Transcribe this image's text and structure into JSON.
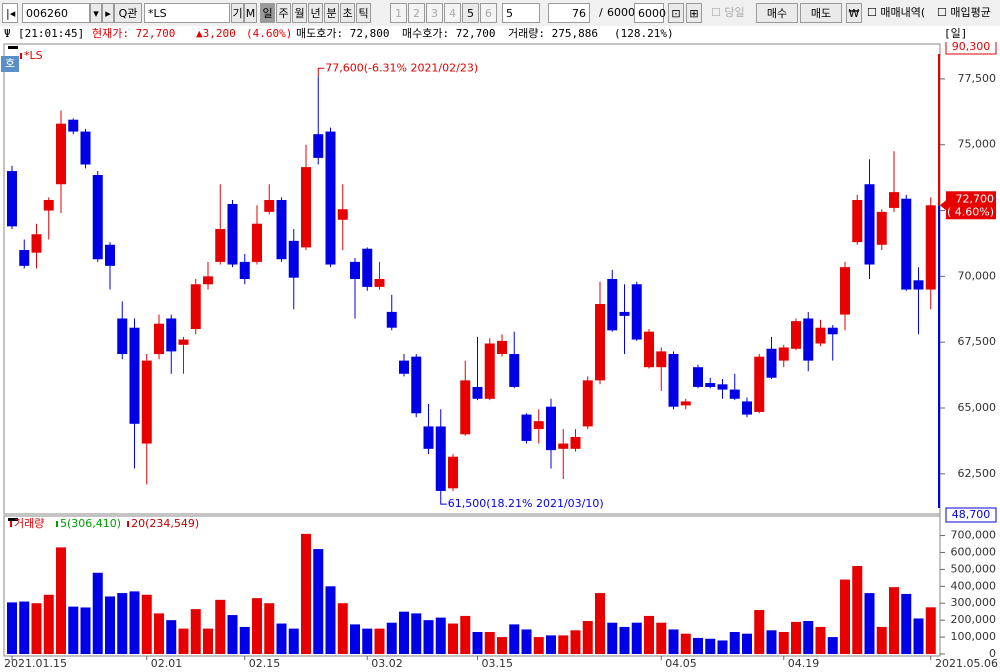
{
  "toolbar": {
    "code": "006260",
    "search": "관",
    "name": "*LS",
    "buttons": [
      "기",
      "M"
    ],
    "periods": [
      "일",
      "주",
      "월",
      "년",
      "분",
      "초",
      "틱"
    ],
    "presets": [
      "1",
      "2",
      "3",
      "4",
      "5",
      "6"
    ],
    "preset_select": "5",
    "count": "76",
    "separator": "/",
    "max_count": "6000",
    "max_count2": "6000",
    "today": "당일",
    "buy": "매수",
    "sell": "매도",
    "currency": "₩",
    "trade_history": "매매내역(",
    "avg_price": "매입평균"
  },
  "info_bar": {
    "time": "[21:01:45]",
    "price": "현재가: 72,700",
    "change": "▲3,200",
    "change_pct": "(4.60%)",
    "ask": "매도호가: 72,800",
    "bid": "매수호가: 72,700",
    "volume": "거래량: 275,886",
    "volume_pct": "(128.21%)",
    "period": "[일]"
  },
  "chart_data": [
    {
      "type": "candlestick",
      "badge": "호",
      "up_color": "#e60000",
      "down_color": "#0000e6",
      "series": [
        {
          "name": "*LS",
          "open": [
            74000,
            71000,
            70900,
            72500,
            73500,
            75950,
            75500,
            73850,
            71200,
            68400,
            68050,
            63650,
            67050,
            68400,
            67400,
            68000,
            69700,
            70550,
            72750,
            70550,
            70550,
            72450,
            72900,
            71350,
            71100,
            75400,
            75500,
            72150,
            70550,
            71050,
            69600,
            68650,
            66800,
            66950,
            64300,
            64300,
            61950,
            64000,
            65800,
            65350,
            67050,
            67050,
            64750,
            64200,
            65050,
            63450,
            63450,
            64300,
            66050,
            69900,
            68650,
            69700,
            66550,
            66550,
            67050,
            65100,
            66550,
            65950,
            65900,
            65700,
            65250,
            64850,
            67250,
            66800,
            67250,
            68400,
            67450,
            68050,
            68550,
            71300,
            73500,
            71200,
            72600,
            72950,
            69850,
            69500
          ],
          "high": [
            74200,
            71400,
            72000,
            73000,
            76300,
            76000,
            75600,
            74000,
            71300,
            69050,
            68400,
            67050,
            68550,
            68550,
            67700,
            69900,
            70550,
            73500,
            72900,
            70850,
            72700,
            73500,
            73000,
            71800,
            75000,
            77600,
            75650,
            73500,
            70700,
            71100,
            70550,
            69300,
            67050,
            67050,
            65150,
            64950,
            63250,
            66800,
            67700,
            67650,
            67800,
            67900,
            64800,
            64950,
            65350,
            64200,
            64200,
            66200,
            69800,
            70250,
            69700,
            69800,
            68000,
            67300,
            67150,
            65350,
            66650,
            66150,
            66100,
            66300,
            65400,
            67050,
            67700,
            67400,
            68400,
            68650,
            68350,
            68150,
            70550,
            73100,
            74450,
            72550,
            74750,
            73100,
            70350,
            73000
          ],
          "low": [
            71800,
            70300,
            70300,
            71400,
            72400,
            75400,
            74100,
            70550,
            69500,
            66850,
            62700,
            62100,
            66850,
            66300,
            66300,
            67800,
            69500,
            70450,
            70350,
            69700,
            70450,
            72350,
            70550,
            68750,
            71000,
            74250,
            70350,
            71000,
            68400,
            69450,
            69500,
            67950,
            66200,
            64650,
            63250,
            61500,
            61850,
            63950,
            65300,
            65300,
            66950,
            65750,
            63650,
            63650,
            62700,
            62300,
            63350,
            64200,
            65900,
            67900,
            67050,
            67550,
            66500,
            65650,
            64950,
            64950,
            65750,
            65750,
            65350,
            65300,
            64650,
            64800,
            66100,
            66550,
            67200,
            66400,
            67350,
            66800,
            67950,
            71200,
            69900,
            71000,
            72450,
            69450,
            67800,
            68750
          ],
          "close": [
            71900,
            70400,
            71600,
            72900,
            75800,
            75500,
            74250,
            70650,
            70400,
            67050,
            64400,
            66800,
            68200,
            67150,
            67600,
            69700,
            70000,
            71800,
            70450,
            69900,
            72000,
            72900,
            70650,
            69950,
            74150,
            74500,
            70450,
            72550,
            69900,
            69600,
            69900,
            68050,
            66300,
            64800,
            63450,
            61850,
            63150,
            66050,
            65350,
            67450,
            67550,
            65800,
            63750,
            64500,
            63400,
            63650,
            63900,
            66050,
            68950,
            67950,
            68500,
            67600,
            67900,
            67150,
            65050,
            65250,
            65800,
            65800,
            65700,
            65350,
            64750,
            66950,
            66150,
            67300,
            68300,
            66800,
            68050,
            67800,
            70350,
            72900,
            70450,
            72450,
            73200,
            69500,
            69500,
            72700
          ]
        }
      ],
      "ylim": [
        61050,
        78750
      ],
      "yticks": [
        {
          "value": 62500,
          "label": "62,500"
        },
        {
          "value": 65000,
          "label": "65,000"
        },
        {
          "value": 67500,
          "label": "67,500"
        },
        {
          "value": 70000,
          "label": "70,000"
        },
        {
          "value": 72500,
          "label": "72,500"
        },
        {
          "value": 75000,
          "label": "75,000"
        },
        {
          "value": 77500,
          "label": "77,500"
        }
      ],
      "annotations": [
        {
          "text": "77,600(-6.31% 2021/02/23)",
          "value": 77600,
          "at": "high"
        },
        {
          "text": "61,500(18.21% 2021/03/10)",
          "value": 61500,
          "at": "low"
        }
      ],
      "current_label": "72,700",
      "current_pct": "( 4.60%)",
      "upper_limit": "90,300",
      "lower_limit": "48,700"
    },
    {
      "type": "bar",
      "title": "거래량",
      "title_color": "#e60000",
      "legend": [
        {
          "name": "5(306,410)",
          "color": "#00a000"
        },
        {
          "name": "20(234,549)",
          "color": "#c00000"
        }
      ],
      "categories": [
        "2021.01.15",
        null,
        null,
        null,
        null,
        null,
        null,
        null,
        null,
        null,
        null,
        "02.01",
        null,
        null,
        null,
        null,
        null,
        null,
        null,
        "02.15",
        null,
        null,
        null,
        null,
        null,
        null,
        null,
        null,
        null,
        "03.02",
        null,
        null,
        null,
        null,
        null,
        null,
        null,
        null,
        "03.15",
        null,
        null,
        null,
        null,
        null,
        null,
        null,
        null,
        null,
        null,
        null,
        null,
        null,
        null,
        "04.05",
        null,
        null,
        null,
        null,
        null,
        null,
        null,
        null,
        null,
        "04.19",
        null,
        null,
        null,
        null,
        null,
        null,
        null,
        null,
        null,
        null,
        null,
        "2021.05.06"
      ],
      "values": [
        305000,
        310000,
        300000,
        350000,
        630000,
        280000,
        275000,
        480000,
        340000,
        360000,
        370000,
        350000,
        240000,
        200000,
        150000,
        265000,
        150000,
        320000,
        230000,
        160000,
        330000,
        300000,
        180000,
        150000,
        710000,
        620000,
        400000,
        300000,
        175000,
        150000,
        150000,
        185000,
        250000,
        240000,
        200000,
        215000,
        180000,
        225000,
        130000,
        130000,
        100000,
        175000,
        145000,
        100000,
        110000,
        110000,
        140000,
        195000,
        360000,
        185000,
        160000,
        185000,
        225000,
        185000,
        145000,
        120000,
        95000,
        90000,
        80000,
        130000,
        120000,
        260000,
        140000,
        130000,
        190000,
        195000,
        160000,
        100000,
        440000,
        520000,
        360000,
        160000,
        395000,
        355000,
        210000,
        275886
      ],
      "ylim": [
        0,
        780000
      ],
      "yticks": [
        0,
        {
          "value": 100000,
          "label": "100,000"
        },
        {
          "value": 200000,
          "label": "200,000"
        },
        {
          "value": 300000,
          "label": "300,000"
        },
        {
          "value": 400000,
          "label": "400,000"
        },
        {
          "value": 500000,
          "label": "500,000"
        },
        {
          "value": 600000,
          "label": "600,000"
        },
        {
          "value": 700000,
          "label": "700,000"
        }
      ]
    }
  ]
}
